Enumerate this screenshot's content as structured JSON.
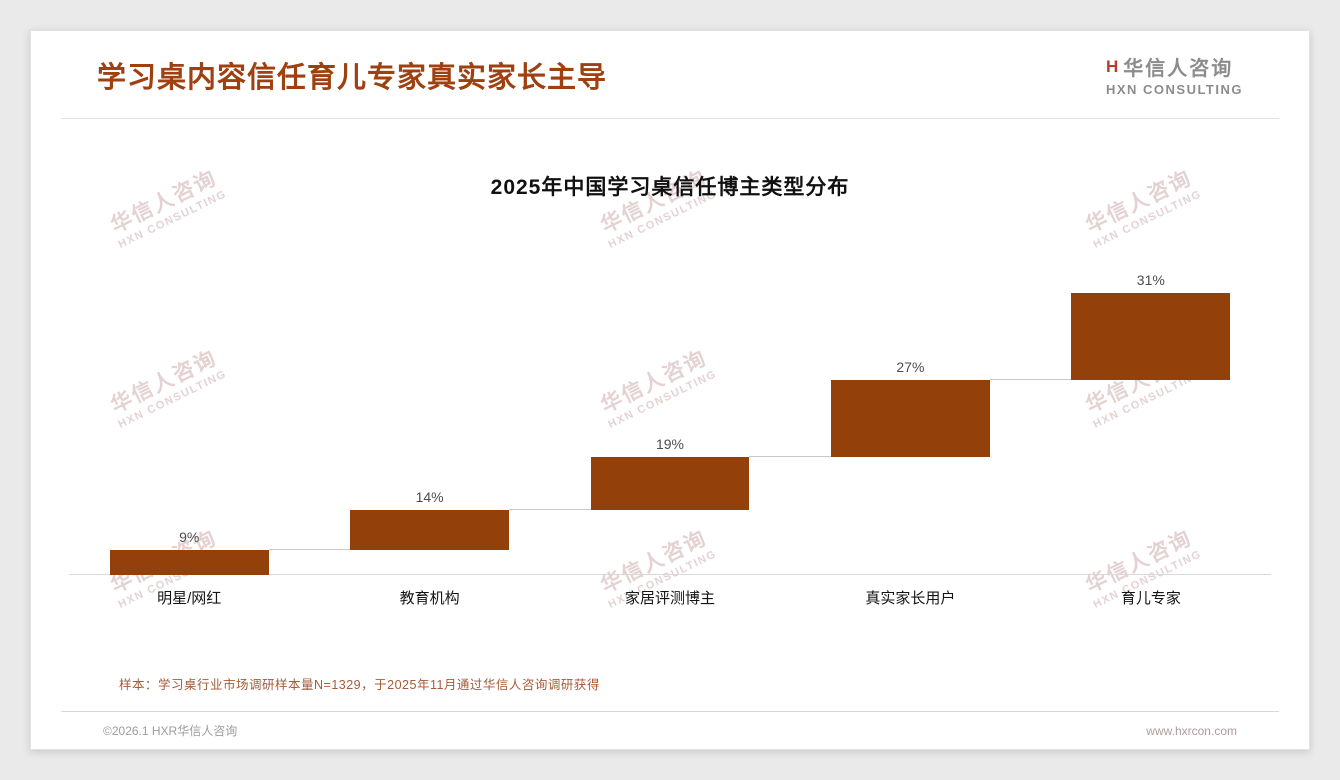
{
  "header": {
    "title": "学习桌内容信任育儿专家真实家长主导",
    "logo": {
      "mark": "H",
      "name_cn": "华信人咨询",
      "name_en": "HXN CONSULTING"
    }
  },
  "watermark": {
    "line1": "华信人咨询",
    "line2": "HXN CONSULTING"
  },
  "chart_data": {
    "type": "bar",
    "subtype": "waterfall",
    "title": "2025年中国学习桌信任博主类型分布",
    "categories": [
      "明星/网红",
      "教育机构",
      "家居评测博主",
      "真实家长用户",
      "育儿专家"
    ],
    "values": [
      9,
      14,
      19,
      27,
      31
    ],
    "value_labels": [
      "9%",
      "14%",
      "19%",
      "27%",
      "31%"
    ],
    "cumulative_start": [
      0,
      9,
      23,
      42,
      69
    ],
    "ylim": [
      0,
      100
    ],
    "bar_color": "#93400a",
    "grid": false,
    "legend": false,
    "xlabel": "",
    "ylabel": ""
  },
  "footnote": "样本：学习桌行业市场调研样本量N=1329，于2025年11月通过华信人咨询调研获得",
  "footer": {
    "left": "©2026.1 HXR华信人咨询",
    "right": "www.hxrcon.com"
  }
}
